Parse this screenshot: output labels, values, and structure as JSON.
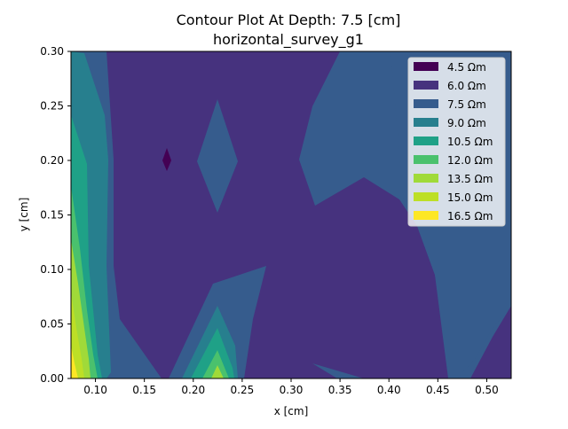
{
  "chart_data": {
    "type": "contour",
    "title": "Contour Plot At Depth: 7.5 [cm]",
    "subtitle": "horizontal_survey_g1",
    "xlabel": "x [cm]",
    "ylabel": "y [cm]",
    "xlim": [
      0.075,
      0.525
    ],
    "ylim": [
      0.0,
      0.3
    ],
    "xticks": [
      "0.10",
      "0.15",
      "0.20",
      "0.25",
      "0.30",
      "0.35",
      "0.40",
      "0.45",
      "0.50"
    ],
    "yticks": [
      "0.00",
      "0.05",
      "0.10",
      "0.15",
      "0.20",
      "0.25",
      "0.30"
    ],
    "xtick_values": [
      0.1,
      0.15,
      0.2,
      0.25,
      0.3,
      0.35,
      0.4,
      0.45,
      0.5
    ],
    "ytick_values": [
      0.0,
      0.05,
      0.1,
      0.15,
      0.2,
      0.25,
      0.3
    ],
    "colormap": "viridis",
    "legend_position": "top-right",
    "levels": [
      {
        "label": "4.5 Ωm",
        "value": 4.5,
        "color": "#440154"
      },
      {
        "label": "6.0 Ωm",
        "value": 6.0,
        "color": "#46327e"
      },
      {
        "label": "7.5 Ωm",
        "value": 7.5,
        "color": "#365c8d"
      },
      {
        "label": "9.0 Ωm",
        "value": 9.0,
        "color": "#277f8e"
      },
      {
        "label": "10.5 Ωm",
        "value": 10.5,
        "color": "#1fa187"
      },
      {
        "label": "12.0 Ωm",
        "value": 12.0,
        "color": "#4ac16d"
      },
      {
        "label": "13.5 Ωm",
        "value": 13.5,
        "color": "#a0da39"
      },
      {
        "label": "15.0 Ωm",
        "value": 15.0,
        "color": "#bddf26"
      },
      {
        "label": "16.5 Ωm",
        "value": 16.5,
        "color": "#fde725"
      }
    ]
  }
}
